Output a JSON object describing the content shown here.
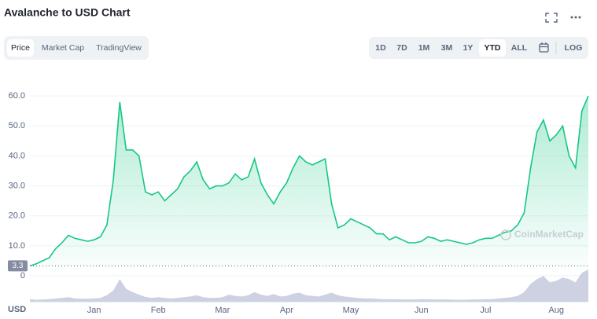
{
  "header": {
    "title": "Avalanche to USD Chart"
  },
  "tabs": [
    "Price",
    "Market Cap",
    "TradingView"
  ],
  "ranges": [
    "1D",
    "7D",
    "1M",
    "3M",
    "1Y",
    "YTD",
    "ALL"
  ],
  "scale_button": "LOG",
  "chart_data": {
    "type": "area",
    "color": "#16c784",
    "categories": [
      null,
      null,
      null,
      null,
      null,
      null,
      null,
      null,
      null,
      null,
      "Jan",
      null,
      null,
      null,
      null,
      null,
      null,
      null,
      null,
      null,
      "Feb",
      null,
      null,
      null,
      null,
      null,
      null,
      null,
      null,
      null,
      "Mar",
      null,
      null,
      null,
      null,
      null,
      null,
      null,
      null,
      null,
      "Apr",
      null,
      null,
      null,
      null,
      null,
      null,
      null,
      null,
      null,
      "May",
      null,
      null,
      null,
      null,
      null,
      null,
      null,
      null,
      null,
      null,
      "Jun",
      null,
      null,
      null,
      null,
      null,
      null,
      null,
      null,
      null,
      "Jul",
      null,
      null,
      null,
      null,
      null,
      null,
      null,
      null,
      null,
      null,
      "Aug",
      null,
      null,
      null,
      null,
      null
    ],
    "values": [
      3.3,
      4,
      5,
      6,
      9,
      11,
      13.5,
      12.5,
      12,
      11.5,
      12,
      13,
      17,
      32,
      58,
      42,
      42,
      40,
      28,
      27,
      28,
      25,
      27,
      29,
      33,
      35,
      38,
      32,
      29,
      30,
      30,
      31,
      34,
      32,
      33,
      39,
      31,
      27,
      24,
      28,
      31,
      36,
      40,
      38,
      37,
      38,
      39,
      24,
      16,
      17,
      19,
      18,
      17,
      16,
      14,
      14,
      12,
      13,
      12,
      11,
      11,
      11.5,
      13,
      12.5,
      11.5,
      12,
      11.5,
      11,
      10.5,
      11,
      12,
      12.5,
      12.5,
      13.5,
      14.5,
      15,
      17,
      21,
      36,
      48,
      52,
      45,
      47,
      50,
      40,
      36,
      55,
      60
    ],
    "ylim": [
      0,
      70
    ],
    "yticks": [
      0,
      {
        "value": 10,
        "label": "10.0"
      },
      {
        "value": 20,
        "label": "20.0"
      },
      {
        "value": 30,
        "label": "30.0"
      },
      {
        "value": 40,
        "label": "40.0"
      },
      {
        "value": 50,
        "label": "50.0"
      },
      {
        "value": 60,
        "label": "60.0"
      }
    ],
    "grid": true,
    "start_price": 3.3,
    "currency_label": "USD",
    "watermark": "CoinMarketCap",
    "volume": {
      "color": "#b8bdd4",
      "ylim": [
        0,
        100
      ],
      "values": [
        8,
        6,
        7,
        8,
        10,
        12,
        14,
        10,
        9,
        9,
        10,
        12,
        20,
        35,
        70,
        40,
        30,
        22,
        15,
        12,
        14,
        12,
        10,
        12,
        14,
        16,
        20,
        14,
        12,
        12,
        14,
        22,
        18,
        16,
        20,
        30,
        22,
        18,
        24,
        16,
        18,
        25,
        28,
        20,
        18,
        16,
        22,
        28,
        20,
        16,
        14,
        12,
        10,
        10,
        9,
        8,
        8,
        8,
        7,
        7,
        7,
        8,
        8,
        7,
        7,
        7,
        6,
        6,
        6,
        7,
        7,
        8,
        8,
        10,
        12,
        14,
        18,
        30,
        55,
        70,
        80,
        60,
        65,
        75,
        70,
        60,
        90,
        100
      ]
    }
  }
}
